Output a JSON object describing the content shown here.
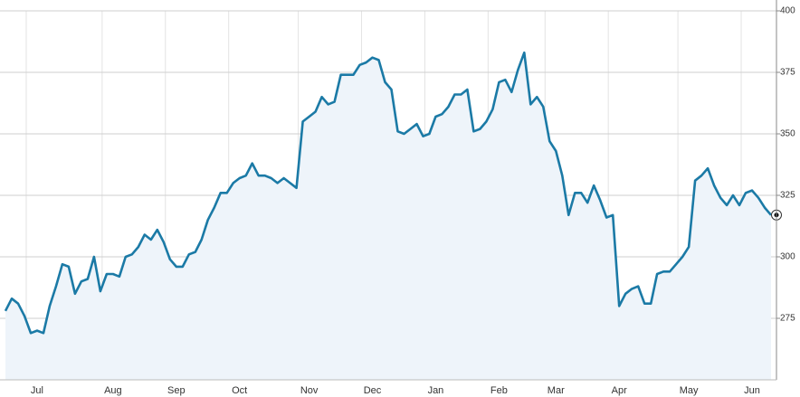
{
  "chart_data": {
    "type": "line",
    "categories": [
      null,
      null,
      null,
      null,
      null,
      "Jul",
      null,
      null,
      null,
      null,
      null,
      null,
      null,
      null,
      null,
      null,
      null,
      "Aug",
      null,
      null,
      null,
      null,
      null,
      null,
      null,
      null,
      null,
      "Sep",
      null,
      null,
      null,
      null,
      null,
      null,
      null,
      null,
      null,
      "Oct",
      null,
      null,
      null,
      null,
      null,
      null,
      null,
      null,
      null,
      null,
      "Nov",
      null,
      null,
      null,
      null,
      null,
      null,
      null,
      null,
      null,
      "Dec",
      null,
      null,
      null,
      null,
      null,
      null,
      null,
      null,
      null,
      "Jan",
      null,
      null,
      null,
      null,
      null,
      null,
      null,
      null,
      null,
      "Feb",
      null,
      null,
      null,
      null,
      null,
      null,
      null,
      null,
      "Mar",
      null,
      null,
      null,
      null,
      null,
      null,
      null,
      null,
      null,
      "Apr",
      null,
      null,
      null,
      null,
      null,
      null,
      null,
      null,
      null,
      null,
      "May",
      null,
      null,
      null,
      null,
      null,
      null,
      null,
      null,
      null,
      "Jun",
      null,
      null,
      null
    ],
    "values": [
      278,
      283,
      281,
      276,
      269,
      270,
      269,
      280,
      288,
      297,
      296,
      285,
      290,
      291,
      300,
      286,
      293,
      293,
      292,
      300,
      301,
      304,
      309,
      307,
      311,
      306,
      299,
      296,
      296,
      301,
      302,
      307,
      315,
      320,
      326,
      326,
      330,
      332,
      333,
      338,
      333,
      333,
      332,
      330,
      332,
      330,
      328,
      355,
      357,
      359,
      365,
      362,
      363,
      374,
      374,
      374,
      378,
      379,
      381,
      380,
      371,
      368,
      351,
      350,
      352,
      354,
      349,
      350,
      357,
      358,
      361,
      366,
      366,
      368,
      351,
      352,
      355,
      360,
      371,
      372,
      367,
      376,
      383,
      362,
      365,
      361,
      347,
      343,
      333,
      317,
      326,
      326,
      322,
      329,
      323,
      316,
      317,
      280,
      285,
      287,
      288,
      281,
      281,
      293,
      294,
      294,
      297,
      300,
      304,
      331,
      333,
      336,
      329,
      324,
      321,
      325,
      321,
      326,
      327,
      324,
      320,
      317
    ],
    "color": "#1b7aa6",
    "ylim": [
      250,
      400
    ],
    "yticks": [
      275,
      300,
      325,
      350,
      375,
      400
    ],
    "grid": true
  }
}
